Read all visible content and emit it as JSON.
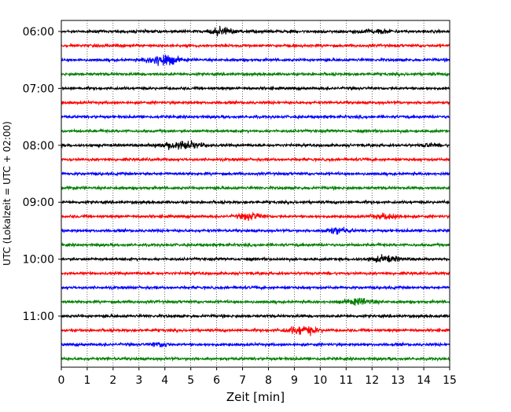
{
  "chart_data": {
    "type": "line",
    "title": "",
    "xlabel": "Zeit  [min]",
    "ylabel": "UTC (Lokalzeit = UTC + 02:00)",
    "xlim": [
      0,
      15
    ],
    "x_ticks": [
      "0",
      "1",
      "2",
      "3",
      "4",
      "5",
      "6",
      "7",
      "8",
      "9",
      "10",
      "11",
      "12",
      "13",
      "14",
      "15"
    ],
    "y_tick_labels": [
      "06:00",
      "07:00",
      "08:00",
      "09:00",
      "10:00",
      "11:00"
    ],
    "grid": "vertical dotted",
    "colors": {
      "trace_cycle": [
        "#000000",
        "#ff0000",
        "#0000ff",
        "#008000"
      ]
    },
    "traces": [
      {
        "start": "06:00",
        "color": "#000000",
        "events": [
          {
            "t": 6.2,
            "amp": 0.85,
            "width": 0.45
          },
          {
            "t": 12.1,
            "amp": 0.4,
            "width": 0.7
          }
        ]
      },
      {
        "start": "06:15",
        "color": "#ff0000",
        "events": []
      },
      {
        "start": "06:30",
        "color": "#0000ff",
        "events": [
          {
            "t": 3.9,
            "amp": 1.5,
            "width": 0.55
          }
        ]
      },
      {
        "start": "06:45",
        "color": "#008000",
        "events": []
      },
      {
        "start": "07:00",
        "color": "#000000",
        "events": []
      },
      {
        "start": "07:15",
        "color": "#ff0000",
        "events": []
      },
      {
        "start": "07:30",
        "color": "#0000ff",
        "events": []
      },
      {
        "start": "07:45",
        "color": "#008000",
        "events": []
      },
      {
        "start": "08:00",
        "color": "#000000",
        "events": [
          {
            "t": 4.6,
            "amp": 1.05,
            "width": 0.75
          },
          {
            "t": 14.2,
            "amp": 0.45,
            "width": 0.25
          }
        ]
      },
      {
        "start": "08:15",
        "color": "#ff0000",
        "events": []
      },
      {
        "start": "08:30",
        "color": "#0000ff",
        "events": []
      },
      {
        "start": "08:45",
        "color": "#008000",
        "events": []
      },
      {
        "start": "09:00",
        "color": "#000000",
        "events": []
      },
      {
        "start": "09:15",
        "color": "#ff0000",
        "events": [
          {
            "t": 7.3,
            "amp": 0.8,
            "width": 0.45
          },
          {
            "t": 12.6,
            "amp": 0.55,
            "width": 0.55
          }
        ]
      },
      {
        "start": "09:30",
        "color": "#0000ff",
        "events": [
          {
            "t": 10.6,
            "amp": 0.75,
            "width": 0.45
          }
        ]
      },
      {
        "start": "09:45",
        "color": "#008000",
        "events": []
      },
      {
        "start": "10:00",
        "color": "#000000",
        "events": [
          {
            "t": 12.5,
            "amp": 0.7,
            "width": 0.55
          }
        ]
      },
      {
        "start": "10:15",
        "color": "#ff0000",
        "events": []
      },
      {
        "start": "10:30",
        "color": "#0000ff",
        "events": []
      },
      {
        "start": "10:45",
        "color": "#008000",
        "events": [
          {
            "t": 11.5,
            "amp": 0.75,
            "width": 0.5
          }
        ]
      },
      {
        "start": "11:00",
        "color": "#000000",
        "events": []
      },
      {
        "start": "11:15",
        "color": "#ff0000",
        "events": [
          {
            "t": 9.3,
            "amp": 1.0,
            "width": 0.6
          }
        ]
      },
      {
        "start": "11:30",
        "color": "#0000ff",
        "events": [
          {
            "t": 3.8,
            "amp": 0.5,
            "width": 0.35
          }
        ]
      },
      {
        "start": "11:45",
        "color": "#008000",
        "events": []
      }
    ]
  }
}
